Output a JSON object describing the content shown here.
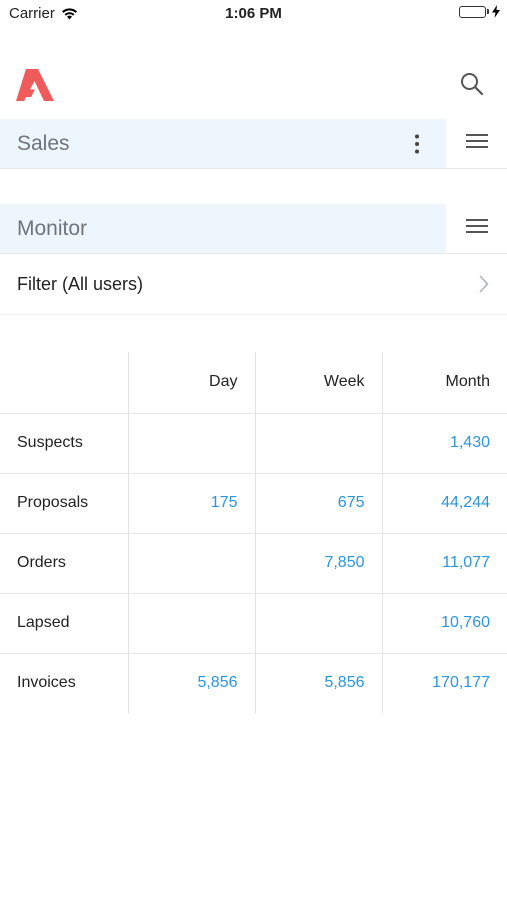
{
  "status_bar": {
    "carrier": "Carrier",
    "time": "1:06 PM",
    "battery_level": 1.0,
    "icons": [
      "wifi-icon",
      "battery-icon",
      "charging-bolt-icon"
    ]
  },
  "header": {
    "logo": "app-logo",
    "search_icon": "search-icon"
  },
  "sections": {
    "sales": {
      "title": "Sales"
    },
    "monitor": {
      "title": "Monitor"
    }
  },
  "filter": {
    "label": "Filter (All users)"
  },
  "table": {
    "columns": [
      "",
      "Day",
      "Week",
      "Month"
    ],
    "rows": [
      {
        "label": "Suspects",
        "day": "",
        "week": "",
        "month": "1,430"
      },
      {
        "label": "Proposals",
        "day": "175",
        "week": "675",
        "month": "44,244"
      },
      {
        "label": "Orders",
        "day": "",
        "week": "7,850",
        "month": "11,077"
      },
      {
        "label": "Lapsed",
        "day": "",
        "week": "",
        "month": "10,760"
      },
      {
        "label": "Invoices",
        "day": "5,856",
        "week": "5,856",
        "month": "170,177"
      }
    ]
  },
  "colors": {
    "accent": "#2b95e0",
    "logo": "#ef5a5a",
    "section_bg": "#eef6fd",
    "section_title": "#707478"
  }
}
